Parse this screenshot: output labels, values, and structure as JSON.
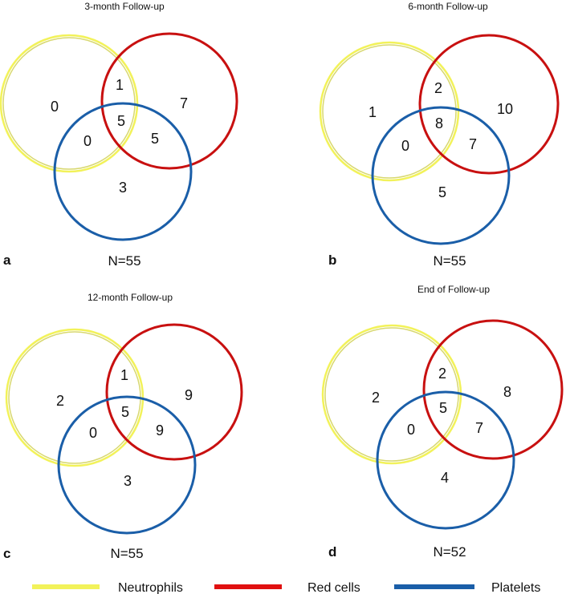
{
  "colors": {
    "neutrophils": "#f2f25a",
    "neutrophils_inner": "#d8d870",
    "red_cells": "#c81010",
    "platelets": "#1a5ea8"
  },
  "panels": [
    {
      "letter": "a",
      "title": "3-month Follow-up",
      "n": "N=55",
      "counts": {
        "n_only": "0",
        "n_r": "1",
        "r_only": "7",
        "n_r_p": "5",
        "n_p": "0",
        "r_p": "5",
        "p_only": "3"
      }
    },
    {
      "letter": "b",
      "title": "6-month Follow-up",
      "n": "N=55",
      "counts": {
        "n_only": "1",
        "n_r": "2",
        "r_only": "10",
        "n_r_p": "8",
        "n_p": "0",
        "r_p": "7",
        "p_only": "5"
      }
    },
    {
      "letter": "c",
      "title": "12-month Follow-up",
      "n": "N=55",
      "counts": {
        "n_only": "2",
        "n_r": "1",
        "r_only": "9",
        "n_r_p": "5",
        "n_p": "0",
        "r_p": "9",
        "p_only": "3"
      }
    },
    {
      "letter": "d",
      "title": "End of Follow-up",
      "n": "N=52",
      "counts": {
        "n_only": "2",
        "n_r": "2",
        "r_only": "8",
        "n_r_p": "5",
        "n_p": "0",
        "r_p": "7",
        "p_only": "4"
      }
    }
  ],
  "legend": {
    "neutrophils": "Neutrophils",
    "red_cells": "Red cells",
    "platelets": "Platelets"
  }
}
